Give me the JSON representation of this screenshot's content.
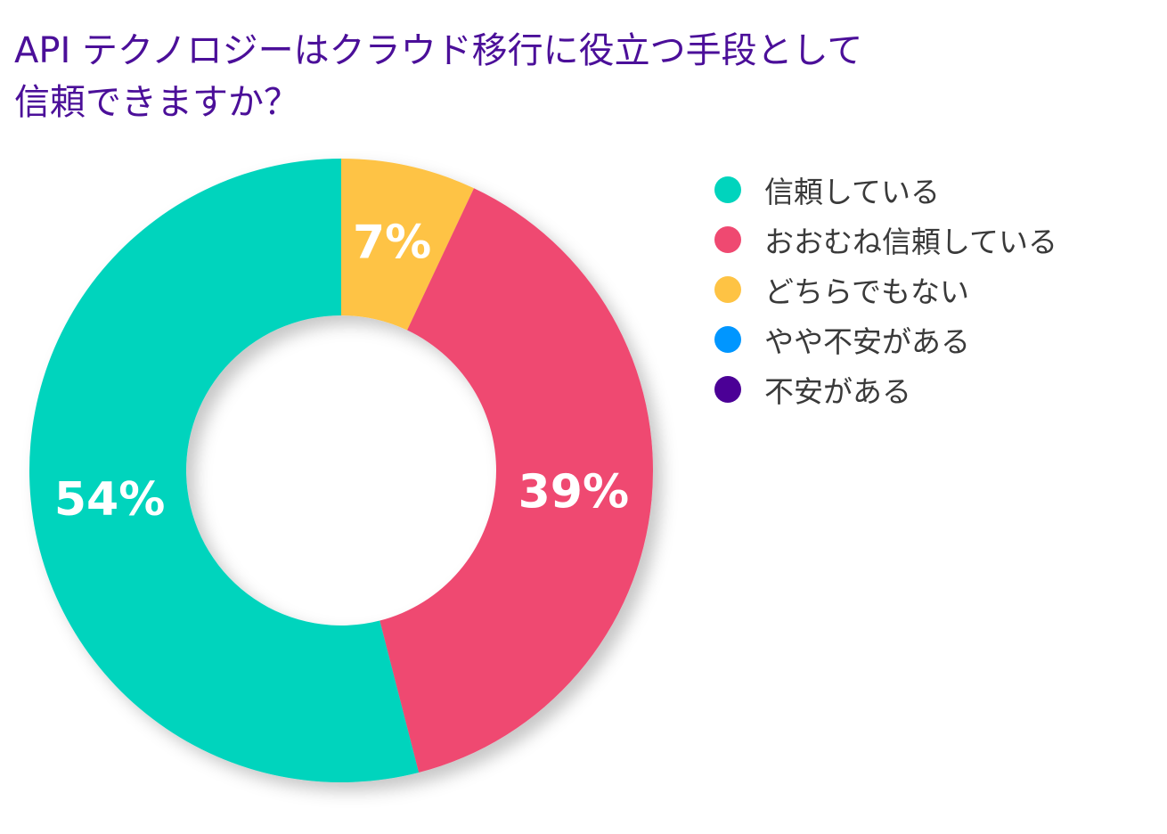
{
  "title_lines": [
    "API テクノロジーはクラウド移行に役立つ手段として",
    "信頼できますか？"
  ],
  "chart_data": {
    "type": "pie",
    "title": "API テクノロジーはクラウド移行に役立つ手段として信頼できますか？",
    "donut": true,
    "start": "top",
    "direction": "clockwise",
    "legend_position": "right",
    "categories": [
      "信頼している",
      "おおむね信頼している",
      "どちらでもない",
      "やや不安がある",
      "不安がある"
    ],
    "values": [
      54,
      39,
      7,
      0,
      0
    ],
    "colors": [
      "#00d4bd",
      "#ef4971",
      "#fec344",
      "#0096ff",
      "#4b0096"
    ],
    "slice_order": [
      2,
      1,
      0
    ],
    "data_labels": [
      "54%",
      "39%",
      "7%",
      "",
      ""
    ],
    "unit": "%"
  }
}
